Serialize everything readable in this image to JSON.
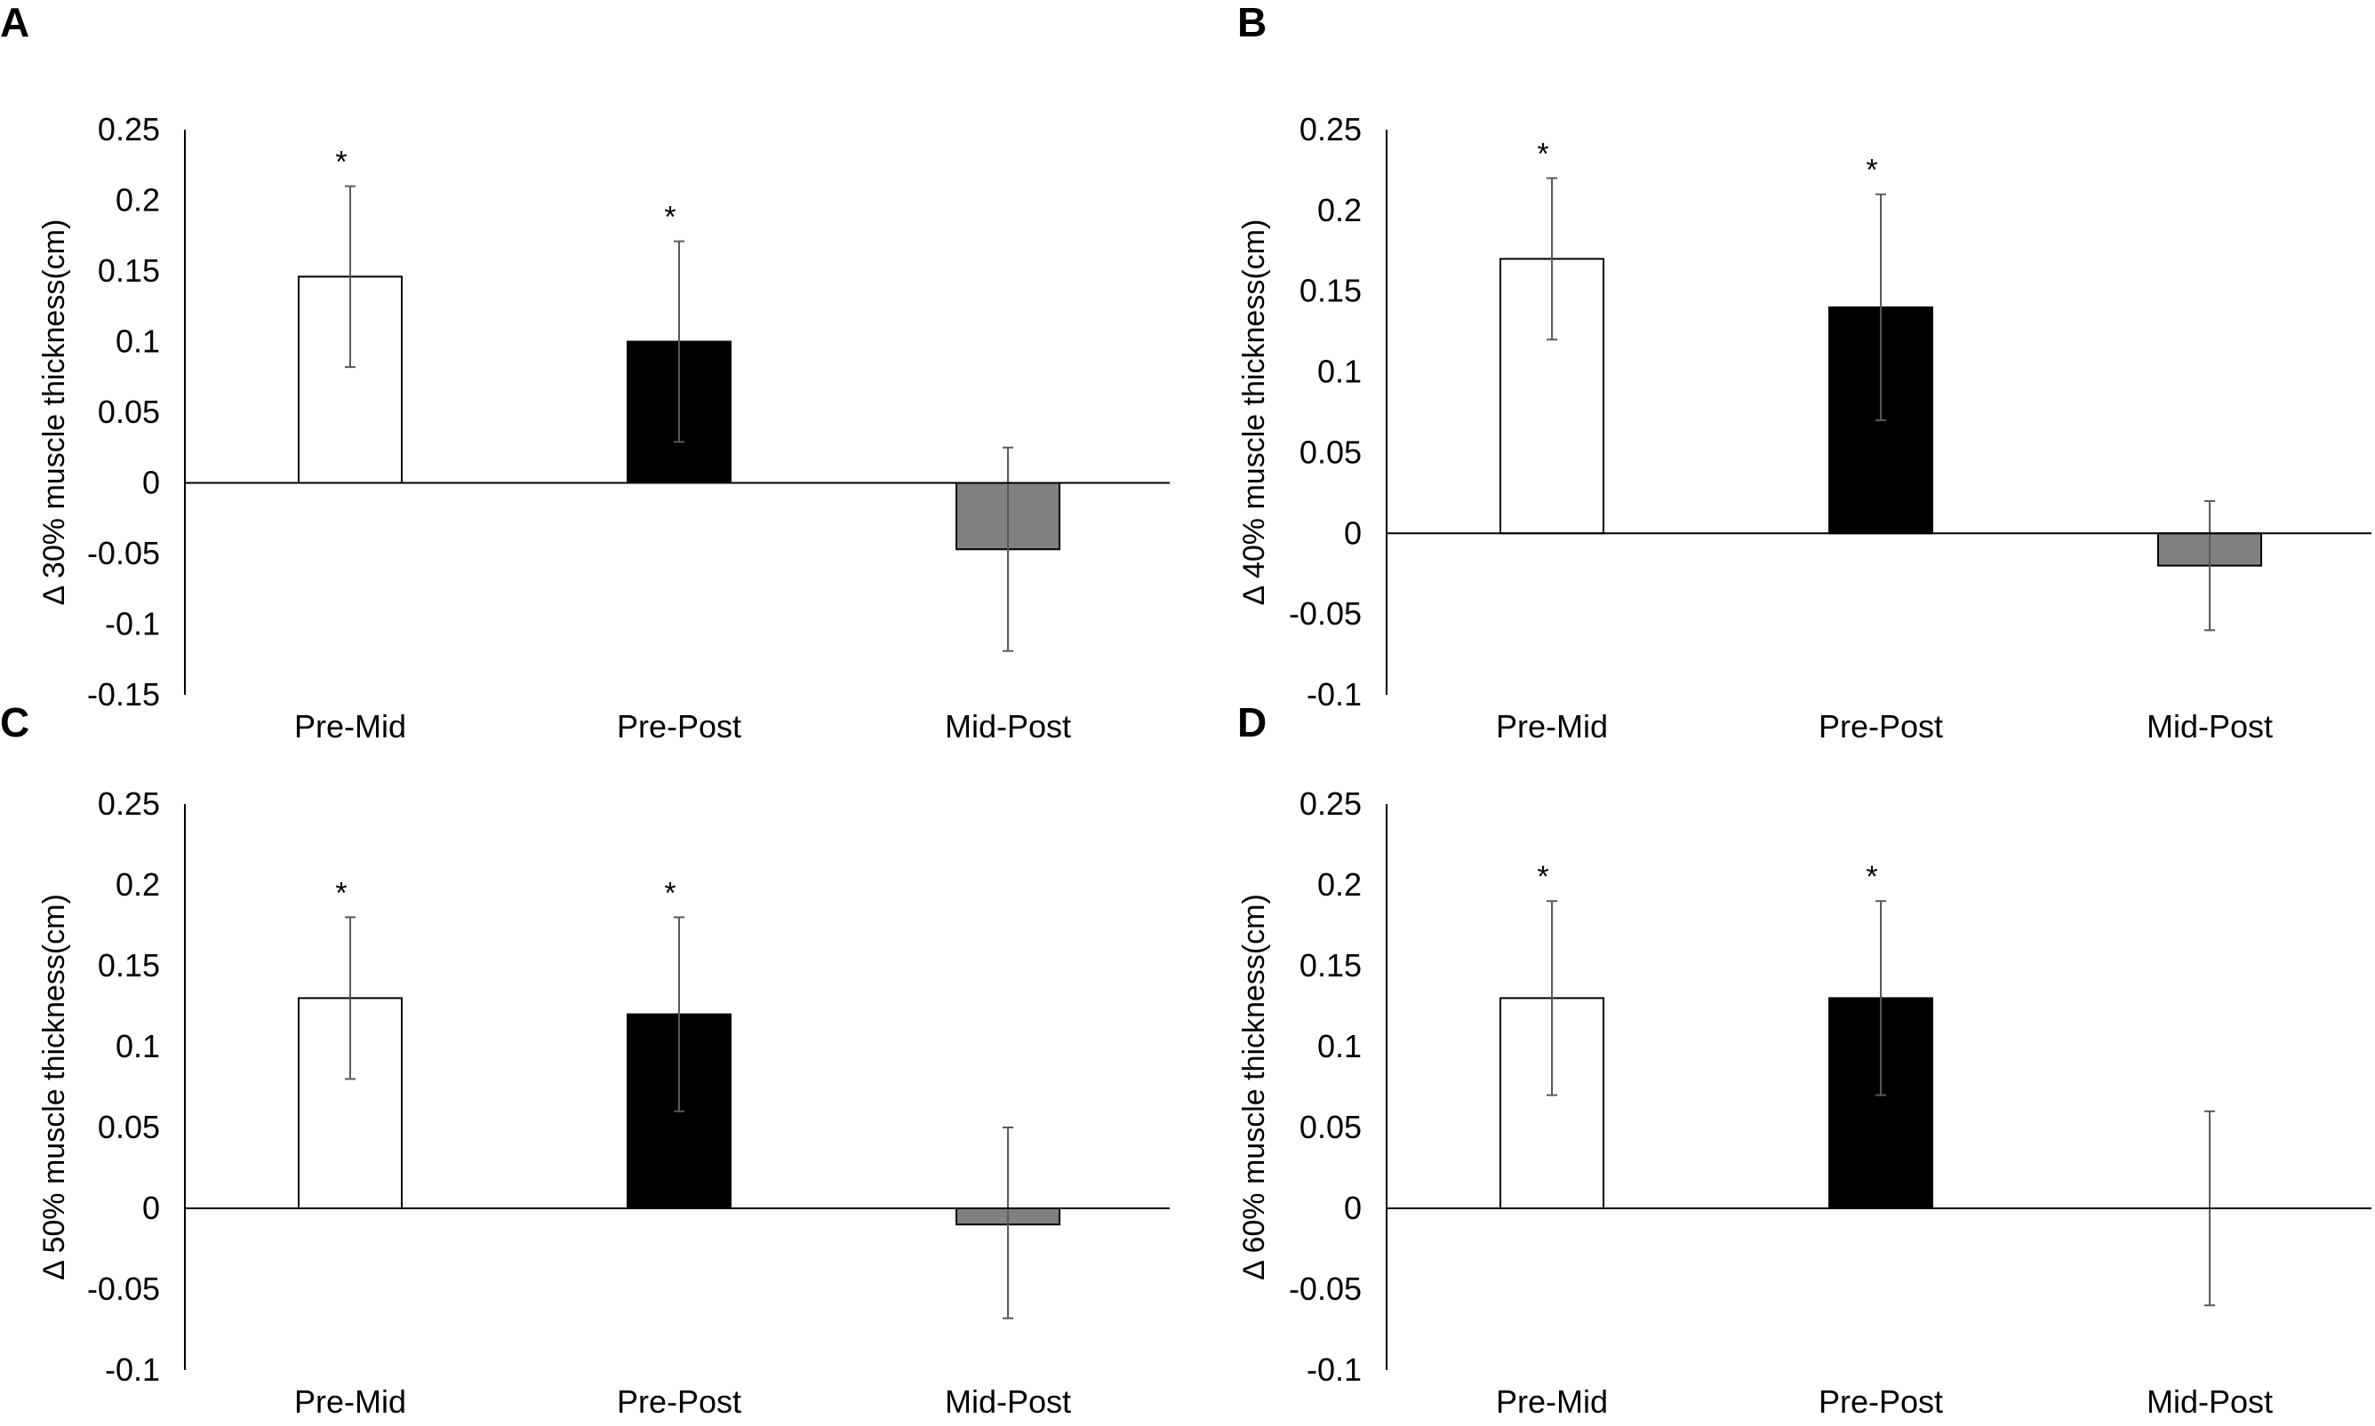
{
  "colors": {
    "pre_mid": "#ffffff",
    "pre_post": "#000000",
    "mid_post": "#808080",
    "axis": "#000000",
    "error_bar": "#595959"
  },
  "chart_data": [
    {
      "type": "bar",
      "panel": "A",
      "categories": [
        "Pre-Mid",
        "Pre-Post",
        "Mid-Post"
      ],
      "values": [
        0.146,
        0.1,
        -0.047
      ],
      "error_upper": [
        0.21,
        0.171,
        0.025
      ],
      "error_lower": [
        0.082,
        0.029,
        -0.119
      ],
      "significant": [
        true,
        true,
        false
      ],
      "sig_marker": "*",
      "ylabel": "Δ 30% muscle thickness(cm)",
      "ylim": [
        -0.15,
        0.25
      ],
      "yticks": [
        0.25,
        0.2,
        0.15,
        0.1,
        0.05,
        0,
        -0.05,
        -0.1,
        -0.15
      ],
      "ytick_labels": [
        "0.25",
        "0.2",
        "0.15",
        "0.1",
        "0.05",
        "0",
        "-0.05",
        "-0.1",
        "-0.15"
      ],
      "grid": false
    },
    {
      "type": "bar",
      "panel": "B",
      "categories": [
        "Pre-Mid",
        "Pre-Post",
        "Mid-Post"
      ],
      "values": [
        0.17,
        0.14,
        -0.02
      ],
      "error_upper": [
        0.22,
        0.21,
        0.02
      ],
      "error_lower": [
        0.12,
        0.07,
        -0.06
      ],
      "significant": [
        true,
        true,
        false
      ],
      "sig_marker": "*",
      "ylabel": "Δ 40% muscle thickness(cm)",
      "ylim": [
        -0.1,
        0.25
      ],
      "yticks": [
        0.25,
        0.2,
        0.15,
        0.1,
        0.05,
        0,
        -0.05,
        -0.1
      ],
      "ytick_labels": [
        "0.25",
        "0.2",
        "0.15",
        "0.1",
        "0.05",
        "0",
        "-0.05",
        "-0.1"
      ],
      "grid": false
    },
    {
      "type": "bar",
      "panel": "C",
      "categories": [
        "Pre-Mid",
        "Pre-Post",
        "Mid-Post"
      ],
      "values": [
        0.13,
        0.12,
        -0.01
      ],
      "error_upper": [
        0.18,
        0.18,
        0.05
      ],
      "error_lower": [
        0.08,
        0.06,
        -0.068
      ],
      "significant": [
        true,
        true,
        false
      ],
      "sig_marker": "*",
      "ylabel": "Δ 50% muscle thickness(cm)",
      "ylim": [
        -0.1,
        0.25
      ],
      "yticks": [
        0.25,
        0.2,
        0.15,
        0.1,
        0.05,
        0,
        -0.05,
        -0.1
      ],
      "ytick_labels": [
        "0.25",
        "0.2",
        "0.15",
        "0.1",
        "0.05",
        "0",
        "-0.05",
        "-0.1"
      ],
      "grid": false
    },
    {
      "type": "bar",
      "panel": "D",
      "categories": [
        "Pre-Mid",
        "Pre-Post",
        "Mid-Post"
      ],
      "values": [
        0.13,
        0.13,
        0.0
      ],
      "error_upper": [
        0.19,
        0.19,
        0.06
      ],
      "error_lower": [
        0.07,
        0.07,
        -0.06
      ],
      "significant": [
        true,
        true,
        false
      ],
      "sig_marker": "*",
      "ylabel": "Δ 60% muscle thickness(cm)",
      "ylim": [
        -0.1,
        0.25
      ],
      "yticks": [
        0.25,
        0.2,
        0.15,
        0.1,
        0.05,
        0,
        -0.05,
        -0.1
      ],
      "ytick_labels": [
        "0.25",
        "0.2",
        "0.15",
        "0.1",
        "0.05",
        "0",
        "-0.05",
        "-0.1"
      ],
      "grid": false
    }
  ]
}
